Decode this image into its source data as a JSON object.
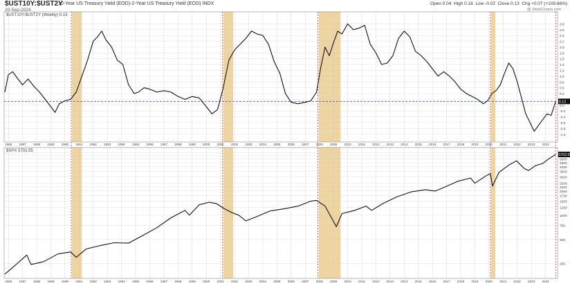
{
  "header": {
    "symbol": "$UST10Y:$UST2Y",
    "description": "10-Year US Treasury Yield (EOD)-2-Year US Treasury Yield (EOD) INDX",
    "date": "20-Sep-2024",
    "open": "Open 0.04",
    "high": "High 0.16",
    "low": "Low -0.02",
    "close": "Close 0.13",
    "chg": "Chg +0.07 (+109.66%)",
    "credit": "@ StockCharts.com"
  },
  "colors": {
    "line": "#111111",
    "recession_band": "#e8c98a",
    "recession_marker": "#c0392b",
    "zero_line": "#3344cc",
    "grid": "#cfcfcf"
  },
  "chart_data": [
    {
      "type": "line",
      "legend": "$UST10Y:$UST2Y (Weekly) 0.13",
      "last_value_label": "0.13",
      "y_ticks": [
        2.8,
        2.6,
        2.4,
        2.2,
        2.0,
        1.8,
        1.6,
        1.4,
        1.2,
        1.0,
        0.8,
        0.6,
        0.4,
        0.2,
        0.0,
        -0.2,
        -0.4,
        -0.6,
        -0.8,
        -1.0
      ],
      "ylim": [
        -1.1,
        3.0
      ],
      "reference_line": 0.13,
      "x_ticks": [
        "1986",
        "1987",
        "1988",
        "1989",
        "1990",
        "1991",
        "1992",
        "1993",
        "1994",
        "1995",
        "1996",
        "1997",
        "1998",
        "1999",
        "2000",
        "2001",
        "2002",
        "2003",
        "2004",
        "2005",
        "2006",
        "2007",
        "2008",
        "2009",
        "2010",
        "2011",
        "2012",
        "2013",
        "2014",
        "2015",
        "2016",
        "2017",
        "2018",
        "2019",
        "2020",
        "2021",
        "2022",
        "2023",
        "2024"
      ],
      "x": [
        1985.75,
        1986.0,
        1986.3,
        1986.6,
        1987.0,
        1987.4,
        1987.8,
        1988.2,
        1988.6,
        1989.0,
        1989.3,
        1989.6,
        1990.0,
        1990.4,
        1990.8,
        1991.2,
        1991.6,
        1992.0,
        1992.3,
        1992.6,
        1992.9,
        1993.3,
        1993.7,
        1994.1,
        1994.5,
        1994.9,
        1995.2,
        1995.6,
        1996.0,
        1996.5,
        1997.0,
        1997.5,
        1998.0,
        1998.5,
        1999.0,
        1999.5,
        2000.0,
        2000.4,
        2000.8,
        2001.2,
        2001.6,
        2002.0,
        2002.4,
        2002.8,
        2003.2,
        2003.6,
        2004.0,
        2004.4,
        2004.8,
        2005.2,
        2005.6,
        2006.0,
        2006.5,
        2007.0,
        2007.4,
        2007.8,
        2008.1,
        2008.4,
        2008.7,
        2009.0,
        2009.3,
        2009.6,
        2010.0,
        2010.4,
        2010.8,
        2011.2,
        2011.6,
        2012.0,
        2012.4,
        2012.8,
        2013.2,
        2013.6,
        2014.0,
        2014.4,
        2014.8,
        2015.2,
        2015.6,
        2016.0,
        2016.4,
        2016.8,
        2017.2,
        2017.6,
        2018.0,
        2018.4,
        2018.8,
        2019.2,
        2019.6,
        2019.9,
        2020.2,
        2020.5,
        2020.8,
        2021.1,
        2021.4,
        2021.7,
        2022.0,
        2022.3,
        2022.6,
        2022.9,
        2023.2,
        2023.5,
        2023.8,
        2024.1,
        2024.4,
        2024.72
      ],
      "values": [
        0.45,
        1.05,
        1.15,
        0.95,
        0.7,
        0.9,
        0.65,
        0.45,
        0.2,
        -0.05,
        -0.25,
        0.05,
        0.15,
        0.2,
        0.45,
        1.0,
        1.55,
        2.2,
        2.35,
        2.55,
        2.25,
        2.0,
        1.55,
        1.4,
        0.7,
        0.4,
        0.45,
        0.6,
        0.55,
        0.45,
        0.5,
        0.45,
        0.3,
        0.2,
        0.3,
        0.25,
        -0.05,
        -0.3,
        -0.15,
        0.6,
        1.55,
        1.9,
        2.1,
        2.3,
        2.55,
        2.45,
        2.4,
        2.1,
        1.5,
        1.1,
        0.4,
        0.1,
        0.05,
        0.1,
        0.15,
        0.45,
        1.3,
        2.0,
        1.7,
        2.15,
        2.55,
        2.45,
        2.8,
        2.6,
        2.65,
        2.75,
        2.1,
        1.8,
        1.4,
        1.45,
        1.7,
        2.3,
        2.55,
        2.35,
        1.85,
        1.7,
        1.5,
        1.25,
        1.0,
        1.15,
        1.0,
        0.8,
        0.55,
        0.4,
        0.3,
        0.2,
        0.05,
        0.15,
        0.4,
        0.5,
        0.7,
        1.1,
        1.45,
        1.25,
        0.8,
        0.25,
        -0.3,
        -0.6,
        -0.9,
        -0.7,
        -0.5,
        -0.3,
        -0.35,
        0.13
      ]
    },
    {
      "type": "line",
      "legend": "$SPX 5702.55",
      "last_value_label": "5702.55",
      "y_scale": "log",
      "y_ticks": [
        6000,
        5500,
        5000,
        4500,
        4000,
        3500,
        3000,
        2500,
        2250,
        2000,
        1750,
        1500,
        1250,
        1000,
        750,
        500,
        250
      ],
      "ylim": [
        200,
        6300
      ],
      "x_ticks": [
        "1986",
        "1987",
        "1988",
        "1989",
        "1990",
        "1991",
        "1992",
        "1993",
        "1994",
        "1995",
        "1996",
        "1997",
        "1998",
        "1999",
        "2000",
        "2001",
        "2002",
        "2003",
        "2004",
        "2005",
        "2006",
        "2007",
        "2008",
        "2009",
        "2010",
        "2011",
        "2012",
        "2013",
        "2014",
        "2015",
        "2016",
        "2017",
        "2018",
        "2019",
        "2020",
        "2021",
        "2022",
        "2023",
        "2024"
      ],
      "x": [
        1985.75,
        1986.5,
        1987.3,
        1987.6,
        1987.9,
        1988.5,
        1989.5,
        1990.4,
        1990.8,
        1991.5,
        1992.5,
        1993.5,
        1994.5,
        1995.5,
        1996.5,
        1997.5,
        1998.5,
        1998.8,
        1999.5,
        2000.2,
        2000.7,
        2001.3,
        2001.8,
        2002.3,
        2002.8,
        2003.5,
        2004.5,
        2005.5,
        2006.5,
        2007.4,
        2007.8,
        2008.4,
        2008.9,
        2009.2,
        2009.6,
        2010.5,
        2011.3,
        2011.7,
        2012.5,
        2013.5,
        2014.5,
        2015.5,
        2016.2,
        2016.9,
        2017.8,
        2018.7,
        2019.0,
        2019.8,
        2020.1,
        2020.25,
        2020.7,
        2021.4,
        2021.95,
        2022.5,
        2022.8,
        2023.3,
        2023.8,
        2024.2,
        2024.72
      ],
      "values": [
        185,
        240,
        320,
        245,
        250,
        265,
        330,
        350,
        300,
        380,
        420,
        455,
        450,
        560,
        700,
        930,
        1150,
        1000,
        1350,
        1450,
        1400,
        1200,
        1080,
        1000,
        850,
        950,
        1130,
        1200,
        1300,
        1500,
        1530,
        1300,
        900,
        720,
        1050,
        1150,
        1300,
        1150,
        1400,
        1700,
        1950,
        2080,
        2000,
        2250,
        2650,
        2900,
        2500,
        3100,
        3300,
        2300,
        3400,
        4200,
        4750,
        3800,
        3600,
        4150,
        4400,
        5000,
        5702.55
      ]
    }
  ],
  "recession_bands": [
    [
      1990.5,
      1991.2
    ],
    [
      2001.2,
      2001.9
    ],
    [
      2007.95,
      2009.5
    ],
    [
      2020.15,
      2020.45
    ]
  ],
  "recession_markers": [
    1990.45,
    2001.15,
    2007.9,
    2020.1,
    2024.72
  ]
}
